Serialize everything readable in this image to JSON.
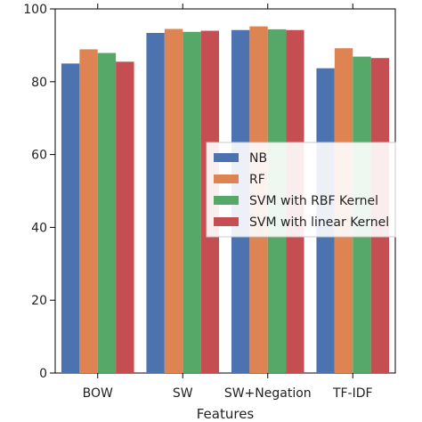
{
  "chart_data": {
    "type": "bar",
    "title": "",
    "xlabel": "Features",
    "ylabel": "",
    "ylim": [
      0,
      100
    ],
    "yticks": [
      0,
      20,
      40,
      60,
      80,
      100
    ],
    "grid": false,
    "legend_position": "center-right",
    "categories": [
      "BOW",
      "SW",
      "SW+Negation",
      "TF-IDF"
    ],
    "series": [
      {
        "name": "NB",
        "color": "#4c72b0",
        "values": [
          85.0,
          93.4,
          94.2,
          83.7
        ]
      },
      {
        "name": "RF",
        "color": "#dd8452",
        "values": [
          88.9,
          94.5,
          95.2,
          89.2
        ]
      },
      {
        "name": "SVM with RBF Kernel",
        "color": "#55a868",
        "values": [
          87.9,
          93.7,
          94.4,
          86.9
        ]
      },
      {
        "name": "SVM with linear Kernel",
        "color": "#c44e52",
        "values": [
          85.5,
          94.0,
          94.2,
          86.5
        ]
      }
    ]
  }
}
